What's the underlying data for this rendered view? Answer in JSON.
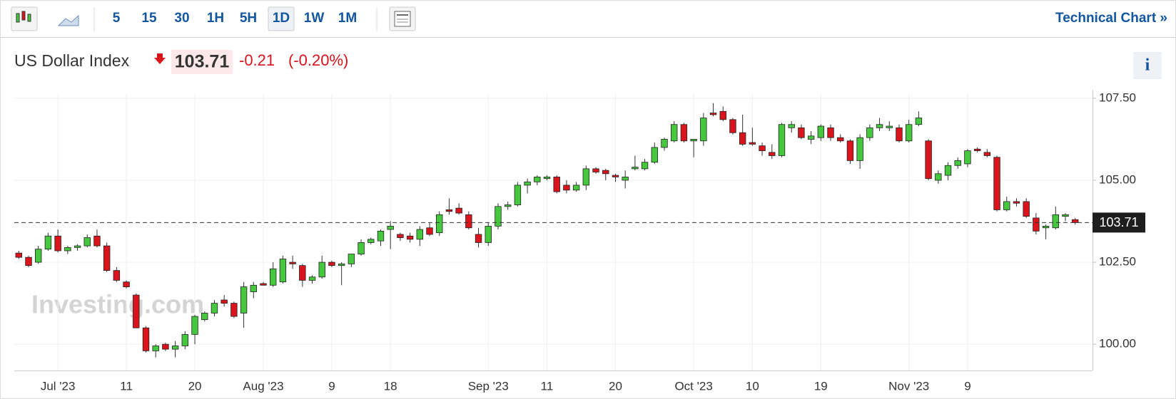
{
  "toolbar": {
    "intervals": [
      "5",
      "15",
      "30",
      "1H",
      "5H",
      "1D",
      "1W",
      "1M"
    ],
    "active": "1D",
    "link": "Technical Chart »"
  },
  "quote": {
    "name": "US Dollar Index",
    "price": 103.71,
    "change": -0.21,
    "change_percent": "(-0.20%)",
    "info": "i"
  },
  "chart_data": {
    "type": "candlestick",
    "watermark": "Investing.com",
    "up_color": "#46c83e",
    "down_color": "#d9141c",
    "last_price": 103.71,
    "categories": [
      null,
      null,
      null,
      null,
      "Jul '23",
      null,
      null,
      null,
      null,
      null,
      null,
      "11",
      null,
      null,
      null,
      null,
      null,
      null,
      "20",
      null,
      null,
      null,
      null,
      null,
      null,
      "Aug '23",
      null,
      null,
      null,
      null,
      null,
      null,
      "9",
      null,
      null,
      null,
      null,
      null,
      "18",
      null,
      null,
      null,
      null,
      null,
      null,
      null,
      null,
      null,
      "Sep '23",
      null,
      null,
      null,
      null,
      null,
      "11",
      null,
      null,
      null,
      null,
      null,
      null,
      "20",
      null,
      null,
      null,
      null,
      null,
      null,
      null,
      "Oct '23",
      null,
      null,
      null,
      null,
      null,
      "10",
      null,
      null,
      null,
      null,
      null,
      null,
      "19",
      null,
      null,
      null,
      null,
      null,
      null,
      null,
      null,
      "Nov '23",
      null,
      null,
      null,
      null,
      null,
      "9",
      null,
      null,
      null,
      null,
      null,
      null,
      null,
      null,
      null,
      null,
      null
    ],
    "open": [
      102.78,
      102.65,
      102.5,
      102.9,
      103.3,
      102.85,
      102.95,
      103.0,
      103.3,
      103.0,
      102.25,
      101.9,
      101.5,
      100.5,
      99.8,
      100.0,
      99.85,
      99.95,
      100.3,
      100.75,
      100.95,
      101.35,
      101.25,
      100.95,
      101.6,
      101.85,
      101.8,
      101.9,
      102.5,
      102.4,
      101.95,
      102.05,
      102.5,
      102.4,
      102.45,
      102.75,
      103.1,
      103.15,
      103.5,
      103.35,
      103.3,
      103.2,
      103.55,
      103.4,
      104.1,
      104.15,
      103.95,
      103.35,
      103.1,
      103.6,
      104.2,
      104.25,
      104.85,
      104.95,
      105.05,
      105.1,
      104.85,
      104.7,
      104.85,
      105.35,
      105.3,
      105.15,
      105.0,
      105.35,
      105.35,
      105.55,
      106.0,
      106.2,
      106.7,
      106.2,
      106.2,
      107.05,
      107.1,
      106.85,
      106.45,
      106.15,
      106.05,
      105.85,
      105.75,
      106.6,
      106.6,
      106.25,
      106.3,
      106.6,
      106.3,
      106.2,
      105.6,
      106.3,
      106.6,
      106.6,
      106.6,
      106.2,
      106.7,
      106.2,
      105.0,
      105.15,
      105.45,
      105.5,
      105.95,
      105.85,
      105.7,
      104.1,
      104.35,
      104.35,
      103.85,
      103.55,
      103.55,
      103.9,
      103.8
    ],
    "high": [
      102.85,
      102.7,
      103.0,
      103.4,
      103.5,
      103.0,
      103.05,
      103.35,
      103.5,
      103.1,
      102.35,
      101.95,
      101.55,
      100.55,
      100.0,
      100.05,
      100.1,
      100.4,
      100.9,
      101.0,
      101.35,
      101.5,
      101.3,
      101.9,
      101.9,
      101.9,
      102.5,
      102.7,
      102.7,
      102.45,
      102.1,
      102.7,
      102.55,
      102.5,
      102.75,
      103.2,
      103.25,
      103.5,
      103.75,
      103.4,
      103.4,
      103.6,
      103.7,
      104.05,
      104.45,
      104.3,
      104.05,
      103.55,
      103.7,
      104.3,
      104.35,
      104.95,
      105.05,
      105.15,
      105.15,
      105.15,
      105.0,
      104.95,
      105.45,
      105.4,
      105.35,
      105.2,
      105.3,
      105.75,
      105.65,
      106.15,
      106.3,
      106.8,
      106.75,
      106.25,
      107.05,
      107.35,
      107.25,
      106.9,
      107.0,
      106.6,
      106.15,
      106.1,
      106.75,
      106.8,
      106.7,
      106.5,
      106.7,
      106.7,
      106.4,
      106.25,
      106.4,
      106.7,
      106.9,
      106.8,
      106.7,
      106.85,
      107.1,
      106.25,
      105.3,
      105.55,
      105.7,
      105.95,
      106.0,
      105.95,
      105.75,
      104.5,
      104.45,
      104.45,
      104.0,
      103.65,
      104.2,
      104.0,
      103.85
    ],
    "low": [
      102.6,
      102.35,
      102.45,
      102.85,
      102.8,
      102.75,
      102.85,
      102.95,
      102.95,
      102.2,
      101.9,
      101.7,
      100.5,
      99.75,
      99.6,
      99.8,
      99.6,
      99.85,
      100.0,
      100.7,
      100.85,
      101.15,
      100.8,
      100.5,
      101.4,
      101.8,
      101.75,
      101.85,
      102.3,
      101.75,
      101.85,
      102.0,
      102.35,
      101.8,
      102.35,
      102.7,
      103.05,
      103.0,
      102.9,
      103.15,
      103.1,
      103.0,
      103.3,
      103.3,
      103.95,
      103.95,
      103.5,
      102.95,
      103.0,
      103.5,
      104.1,
      104.2,
      104.6,
      104.85,
      105.0,
      104.6,
      104.6,
      104.65,
      104.7,
      105.2,
      105.0,
      104.95,
      104.75,
      105.3,
      105.3,
      105.5,
      105.9,
      106.15,
      106.15,
      105.7,
      106.05,
      106.95,
      106.8,
      106.4,
      106.05,
      106.05,
      105.75,
      105.65,
      105.7,
      106.45,
      106.25,
      106.1,
      106.2,
      106.2,
      106.15,
      105.5,
      105.35,
      106.2,
      106.5,
      106.5,
      106.15,
      106.15,
      106.65,
      105.0,
      104.9,
      105.0,
      105.35,
      105.4,
      105.85,
      105.7,
      104.05,
      104.05,
      104.2,
      103.85,
      103.35,
      103.2,
      103.5,
      103.75,
      103.65
    ],
    "close": [
      102.65,
      102.4,
      102.9,
      103.3,
      102.85,
      102.95,
      103.0,
      103.25,
      103.0,
      102.25,
      101.95,
      101.75,
      100.5,
      99.8,
      99.95,
      99.85,
      99.95,
      100.3,
      100.85,
      100.95,
      101.25,
      101.25,
      100.85,
      101.75,
      101.8,
      101.8,
      102.3,
      102.6,
      102.45,
      101.95,
      102.05,
      102.5,
      102.4,
      102.45,
      102.75,
      103.1,
      103.2,
      103.45,
      103.6,
      103.25,
      103.2,
      103.5,
      103.35,
      103.95,
      104.05,
      104.0,
      103.55,
      103.1,
      103.6,
      104.2,
      104.25,
      104.85,
      104.95,
      105.1,
      105.1,
      104.65,
      104.7,
      104.85,
      105.35,
      105.25,
      105.2,
      105.1,
      105.1,
      105.4,
      105.55,
      106.0,
      106.25,
      106.7,
      106.2,
      106.25,
      106.9,
      107.0,
      106.85,
      106.45,
      106.1,
      106.1,
      105.9,
      105.75,
      106.7,
      106.7,
      106.3,
      106.35,
      106.65,
      106.3,
      106.2,
      105.6,
      106.3,
      106.6,
      106.7,
      106.65,
      106.2,
      106.7,
      106.9,
      105.05,
      105.2,
      105.45,
      105.6,
      105.9,
      105.9,
      105.75,
      104.1,
      104.35,
      104.3,
      103.9,
      103.45,
      103.6,
      103.95,
      103.95,
      103.71
    ],
    "ylim": [
      99.2,
      107.65
    ],
    "yticks": [
      {
        "value": 100,
        "label": "100.00"
      },
      {
        "value": 102.5,
        "label": "102.50"
      },
      {
        "value": 105,
        "label": "105.00"
      },
      {
        "value": 107.5,
        "label": "107.50"
      }
    ],
    "grid": true
  }
}
